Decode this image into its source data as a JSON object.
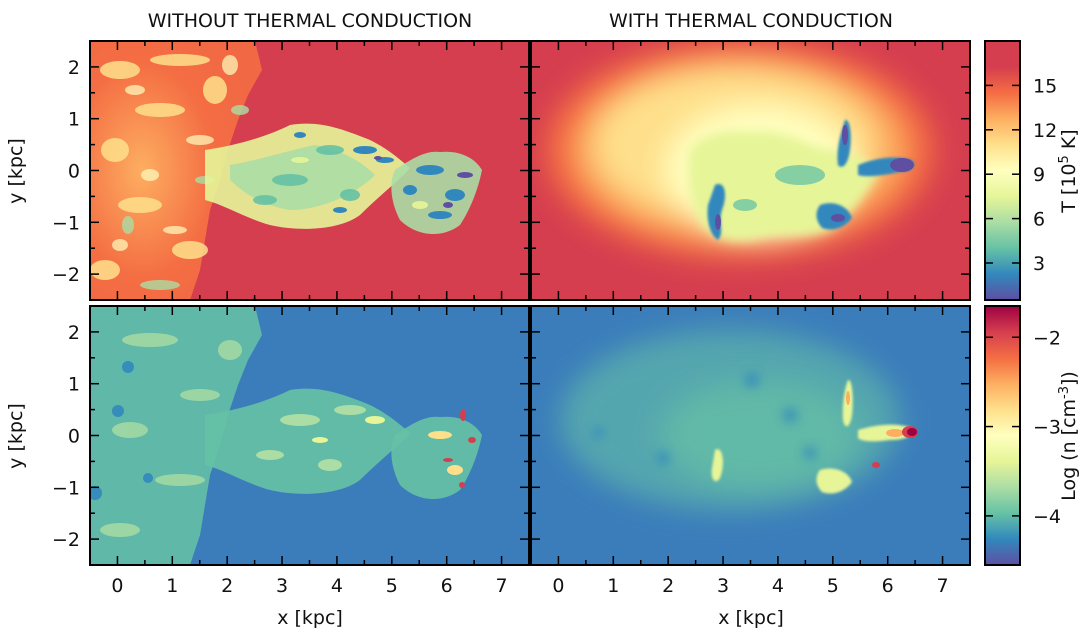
{
  "titles": {
    "left": "WITHOUT THERMAL CONDUCTION",
    "right": "WITH THERMAL CONDUCTION"
  },
  "chart_data": {
    "type": "heatmap",
    "panels": [
      {
        "id": "temp-no-conduction",
        "row": "temperature",
        "column": "without thermal conduction"
      },
      {
        "id": "temp-conduction",
        "row": "temperature",
        "column": "with thermal conduction"
      },
      {
        "id": "density-no-conduction",
        "row": "density",
        "column": "without thermal conduction"
      },
      {
        "id": "density-conduction",
        "row": "density",
        "column": "with thermal conduction"
      }
    ],
    "xlabel": "x [kpc]",
    "ylabel": "y [kpc]",
    "xlim": [
      -0.5,
      7.5
    ],
    "ylim": [
      -2.5,
      2.5
    ],
    "xticks": [
      0,
      1,
      2,
      3,
      4,
      5,
      6,
      7
    ],
    "yticks": [
      -2,
      -1,
      0,
      1,
      2
    ],
    "colorbars": [
      {
        "id": "temperature",
        "label": "T [10⁵ K]",
        "label_main": "T [10",
        "label_sup": "5",
        "label_end": " K]",
        "range": [
          0.5,
          18
        ],
        "ticks": [
          3,
          6,
          9,
          12,
          15
        ],
        "colormap": "Spectral_r"
      },
      {
        "id": "density",
        "label": "Log (n [cm⁻³])",
        "label_main": "Log (n [cm",
        "label_sup": "-3",
        "label_end": "])",
        "range": [
          -4.55,
          -1.65
        ],
        "ticks": [
          -4,
          -3,
          -2
        ],
        "colormap": "Spectral_r"
      }
    ],
    "colors": {
      "hot_background": "#d53e4f",
      "low_density_background": "#3b7dbb",
      "colormap_stops": [
        "#5e4fa2",
        "#3288bd",
        "#66c2a5",
        "#abdda4",
        "#e6f598",
        "#ffffbf",
        "#fee08b",
        "#fdae61",
        "#f46d43",
        "#d53e4f",
        "#9e0142"
      ]
    }
  }
}
